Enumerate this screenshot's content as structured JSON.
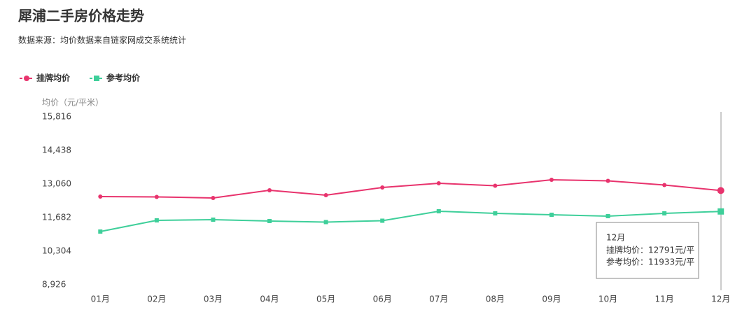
{
  "chart_data": {
    "type": "line",
    "title": "犀浦二手房价格走势",
    "subtitle": "数据来源：均价数据来自链家网成交系统统计",
    "y_label": "均价（元/平米）",
    "categories": [
      "01月",
      "02月",
      "03月",
      "04月",
      "05月",
      "06月",
      "07月",
      "08月",
      "09月",
      "10月",
      "11月",
      "12月"
    ],
    "series": [
      {
        "name": "挂牌均价",
        "color": "#e8336d",
        "marker": "circle",
        "values": [
          12543,
          12530,
          12486,
          12802,
          12601,
          12917,
          13089,
          12989,
          13233,
          13190,
          13017,
          12791
        ]
      },
      {
        "name": "参考均价",
        "color": "#3ecf9a",
        "marker": "square",
        "values": [
          11108,
          11567,
          11596,
          11539,
          11496,
          11553,
          11941,
          11855,
          11797,
          11740,
          11855,
          11933
        ]
      }
    ],
    "ylim": [
      8926,
      15816
    ],
    "yticks": [
      {
        "value": 8926,
        "label": "8,926"
      },
      {
        "value": 10304,
        "label": "10,304"
      },
      {
        "value": 11682,
        "label": "11,682"
      },
      {
        "value": 13060,
        "label": "13,060"
      },
      {
        "value": 14438,
        "label": "14,438"
      },
      {
        "value": 15816,
        "label": "15,816"
      }
    ],
    "grid": false,
    "legend": "top-left",
    "tooltip": {
      "title": "12月",
      "lines": [
        "挂牌均价：12791元/平",
        "参考均价：11933元/平"
      ]
    }
  }
}
